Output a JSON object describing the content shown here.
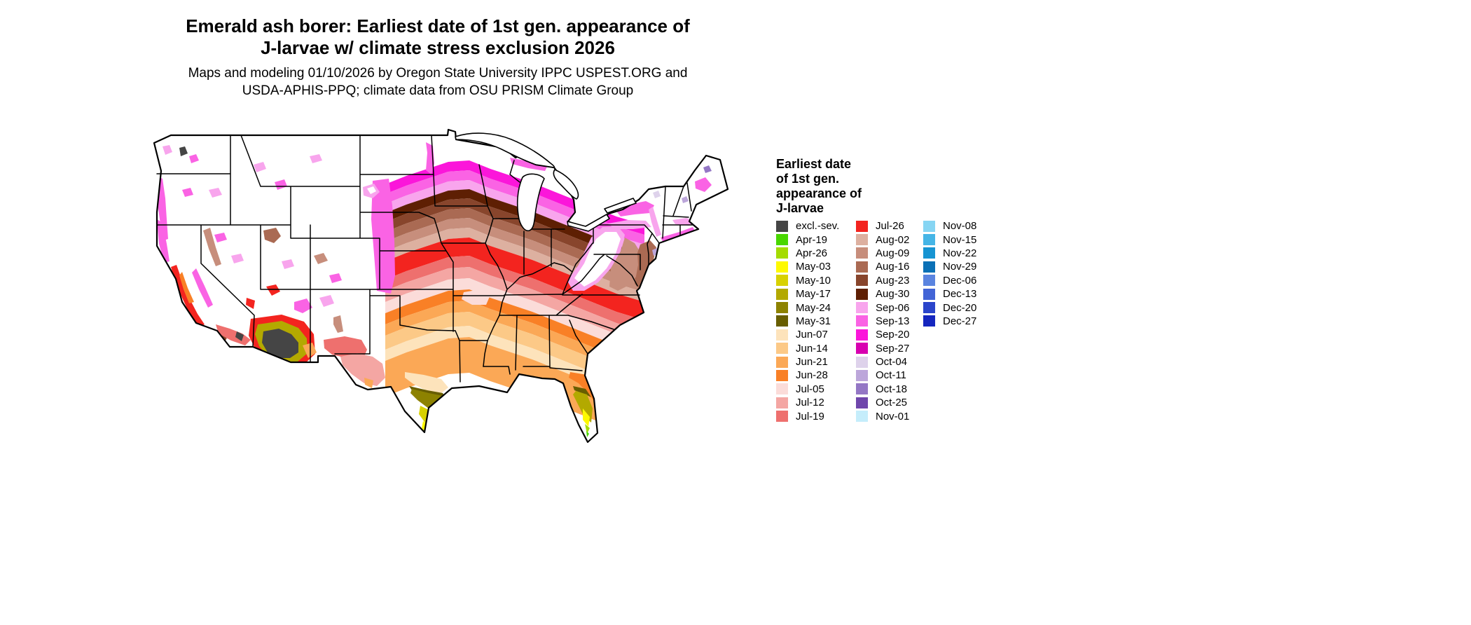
{
  "title": {
    "line1": "Emerald ash borer: Earliest date of 1st gen. appearance of",
    "line2": "J-larvae w/ climate stress exclusion 2026"
  },
  "subtitle": {
    "line1": "Maps and modeling 01/10/2026 by Oregon State University IPPC USPEST.ORG and",
    "line2": "USDA-APHIS-PPQ; climate data from OSU PRISM Climate Group"
  },
  "map": {
    "region": "Contiguous United States",
    "variable": "Earliest date of 1st gen. appearance of J-larvae"
  },
  "legend": {
    "title_lines": [
      "Earliest date",
      "of 1st gen.",
      "appearance of",
      "J-larvae"
    ],
    "columns": [
      [
        {
          "label": "excl.-sev.",
          "color": "#454545"
        },
        {
          "label": "Apr-19",
          "color": "#49d700"
        },
        {
          "label": "Apr-26",
          "color": "#a4dc00"
        },
        {
          "label": "May-03",
          "color": "#fef900"
        },
        {
          "label": "May-10",
          "color": "#d8d100"
        },
        {
          "label": "May-17",
          "color": "#b3a900"
        },
        {
          "label": "May-24",
          "color": "#8d8200"
        },
        {
          "label": "May-31",
          "color": "#685e00"
        },
        {
          "label": "Jun-07",
          "color": "#fde3bb"
        },
        {
          "label": "Jun-14",
          "color": "#fcc987"
        },
        {
          "label": "Jun-21",
          "color": "#fba856"
        },
        {
          "label": "Jun-28",
          "color": "#f98026"
        },
        {
          "label": "Jul-05",
          "color": "#fbdcd9"
        },
        {
          "label": "Jul-12",
          "color": "#f4a6a3"
        },
        {
          "label": "Jul-19",
          "color": "#ee706e"
        }
      ],
      [
        {
          "label": "Jul-26",
          "color": "#f3241f"
        },
        {
          "label": "Aug-02",
          "color": "#ddb0a0"
        },
        {
          "label": "Aug-09",
          "color": "#c78e7c"
        },
        {
          "label": "Aug-16",
          "color": "#aa6a53"
        },
        {
          "label": "Aug-23",
          "color": "#88452c"
        },
        {
          "label": "Aug-30",
          "color": "#5e1f03"
        },
        {
          "label": "Sep-06",
          "color": "#f8a5ed"
        },
        {
          "label": "Sep-13",
          "color": "#fa63e4"
        },
        {
          "label": "Sep-20",
          "color": "#fb16da"
        },
        {
          "label": "Sep-27",
          "color": "#d800b0"
        },
        {
          "label": "Oct-04",
          "color": "#ded2eb"
        },
        {
          "label": "Oct-11",
          "color": "#bca6da"
        },
        {
          "label": "Oct-18",
          "color": "#9477c5"
        },
        {
          "label": "Oct-25",
          "color": "#6f46ab"
        },
        {
          "label": "Nov-01",
          "color": "#c5edfb"
        }
      ],
      [
        {
          "label": "Nov-08",
          "color": "#86d5f3"
        },
        {
          "label": "Nov-15",
          "color": "#45b5e6"
        },
        {
          "label": "Nov-22",
          "color": "#1694d2"
        },
        {
          "label": "Nov-29",
          "color": "#0a70b6"
        },
        {
          "label": "Dec-06",
          "color": "#5a84e0"
        },
        {
          "label": "Dec-13",
          "color": "#4264d6"
        },
        {
          "label": "Dec-20",
          "color": "#2b45cb"
        },
        {
          "label": "Dec-27",
          "color": "#1526bf"
        }
      ]
    ]
  }
}
